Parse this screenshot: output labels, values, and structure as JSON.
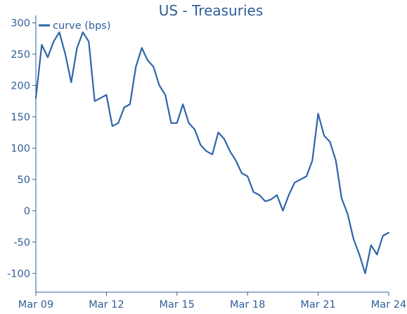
{
  "chart_data": {
    "type": "line",
    "title": "US - Treasuries",
    "xlabel": "",
    "ylabel": "",
    "legend_position": "top-left",
    "grid": false,
    "xlim": [
      "2009-03-01",
      "2024-03-01"
    ],
    "ylim": [
      -130,
      305
    ],
    "x_ticks": [
      {
        "date": "2009-03-01",
        "label": "Mar 09"
      },
      {
        "date": "2012-03-01",
        "label": "Mar 12"
      },
      {
        "date": "2015-03-01",
        "label": "Mar 15"
      },
      {
        "date": "2018-03-01",
        "label": "Mar 18"
      },
      {
        "date": "2021-03-01",
        "label": "Mar 21"
      },
      {
        "date": "2024-03-01",
        "label": "Mar 24"
      }
    ],
    "y_ticks": [
      -100,
      -50,
      0,
      50,
      100,
      150,
      200,
      250,
      300
    ],
    "series": [
      {
        "name": "curve (bps)",
        "color": "#2e65a9",
        "points": [
          [
            "2009-03-01",
            180
          ],
          [
            "2009-06-01",
            265
          ],
          [
            "2009-09-01",
            245
          ],
          [
            "2009-12-01",
            270
          ],
          [
            "2010-03-01",
            285
          ],
          [
            "2010-06-01",
            250
          ],
          [
            "2010-09-01",
            205
          ],
          [
            "2010-12-01",
            260
          ],
          [
            "2011-03-01",
            285
          ],
          [
            "2011-06-01",
            270
          ],
          [
            "2011-09-01",
            175
          ],
          [
            "2011-12-01",
            180
          ],
          [
            "2012-03-01",
            185
          ],
          [
            "2012-06-01",
            135
          ],
          [
            "2012-09-01",
            140
          ],
          [
            "2012-12-01",
            165
          ],
          [
            "2013-03-01",
            170
          ],
          [
            "2013-06-01",
            230
          ],
          [
            "2013-09-01",
            260
          ],
          [
            "2013-12-01",
            240
          ],
          [
            "2014-03-01",
            230
          ],
          [
            "2014-06-01",
            200
          ],
          [
            "2014-09-01",
            185
          ],
          [
            "2014-12-01",
            140
          ],
          [
            "2015-03-01",
            140
          ],
          [
            "2015-06-01",
            170
          ],
          [
            "2015-09-01",
            140
          ],
          [
            "2015-12-01",
            130
          ],
          [
            "2016-03-01",
            105
          ],
          [
            "2016-06-01",
            95
          ],
          [
            "2016-09-01",
            90
          ],
          [
            "2016-12-01",
            125
          ],
          [
            "2017-03-01",
            115
          ],
          [
            "2017-06-01",
            95
          ],
          [
            "2017-09-01",
            80
          ],
          [
            "2017-12-01",
            60
          ],
          [
            "2018-03-01",
            55
          ],
          [
            "2018-06-01",
            30
          ],
          [
            "2018-09-01",
            25
          ],
          [
            "2018-12-01",
            15
          ],
          [
            "2019-03-01",
            18
          ],
          [
            "2019-06-01",
            25
          ],
          [
            "2019-09-01",
            0
          ],
          [
            "2019-12-01",
            25
          ],
          [
            "2020-03-01",
            45
          ],
          [
            "2020-06-01",
            50
          ],
          [
            "2020-09-01",
            55
          ],
          [
            "2020-12-01",
            80
          ],
          [
            "2021-03-01",
            155
          ],
          [
            "2021-06-01",
            120
          ],
          [
            "2021-09-01",
            110
          ],
          [
            "2021-12-01",
            80
          ],
          [
            "2022-03-01",
            20
          ],
          [
            "2022-06-01",
            -5
          ],
          [
            "2022-09-01",
            -45
          ],
          [
            "2022-12-01",
            -70
          ],
          [
            "2023-03-01",
            -100
          ],
          [
            "2023-06-01",
            -55
          ],
          [
            "2023-09-01",
            -70
          ],
          [
            "2023-12-01",
            -40
          ],
          [
            "2024-03-01",
            -35
          ]
        ]
      }
    ]
  }
}
